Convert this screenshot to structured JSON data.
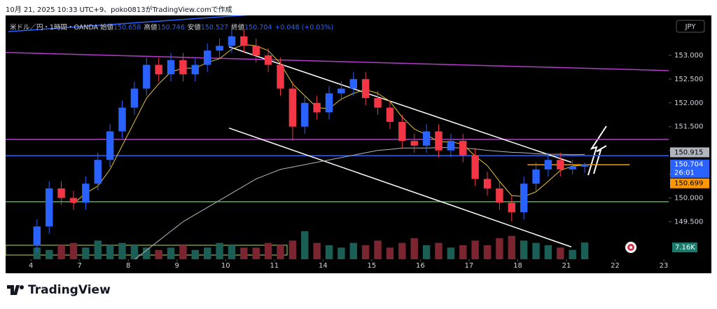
{
  "chart_data": {
    "type": "candlestick",
    "caption": "10月 21, 2025 10:33 UTC+9、poko0813がTradingView.comで作成",
    "legend": {
      "symbol": "米ドル／円・1時間・OANDA",
      "open_label": "始値",
      "open": 150.658,
      "high_label": "高値",
      "high": 150.746,
      "low_label": "安値",
      "low": 150.527,
      "close_label": "終値",
      "close": 150.704,
      "change": "+0.048 (+0.03%)"
    },
    "currency": "JPY",
    "brand": "TradingView",
    "xlim": [
      -0.52,
      13.1
    ],
    "xticks": [
      {
        "value": 0,
        "label": "4"
      },
      {
        "value": 1,
        "label": "7"
      },
      {
        "value": 2,
        "label": "8"
      },
      {
        "value": 3,
        "label": "9"
      },
      {
        "value": 4,
        "label": "10"
      },
      {
        "value": 5,
        "label": "11"
      },
      {
        "value": 6,
        "label": "14"
      },
      {
        "value": 7,
        "label": "15"
      },
      {
        "value": 8,
        "label": "16"
      },
      {
        "value": 9,
        "label": "17"
      },
      {
        "value": 10,
        "label": "18"
      },
      {
        "value": 11,
        "label": "21"
      },
      {
        "value": 12,
        "label": "22"
      },
      {
        "value": 13,
        "label": "23"
      }
    ],
    "ylim": [
      148.71,
      153.84
    ],
    "yticks": [
      {
        "value": 149.5,
        "label": "149.500"
      },
      {
        "value": 150,
        "label": "150.000"
      },
      {
        "value": 150.5,
        "label": "150.500"
      },
      {
        "value": 151,
        "label": "151.000"
      },
      {
        "value": 151.5,
        "label": "151.500"
      },
      {
        "value": 152,
        "label": "152.000"
      },
      {
        "value": 152.5,
        "label": "152.500"
      },
      {
        "value": 153,
        "label": "153.000"
      }
    ],
    "up_color": "#2962ff",
    "down_color": "#f23645",
    "x": [
      0.125,
      0.375,
      0.625,
      0.875,
      1.125,
      1.375,
      1.625,
      1.875,
      2.125,
      2.375,
      2.625,
      2.875,
      3.125,
      3.375,
      3.625,
      3.875,
      4.125,
      4.375,
      4.625,
      4.875,
      5.125,
      5.375,
      5.625,
      5.875,
      6.125,
      6.375,
      6.625,
      6.875,
      7.125,
      7.375,
      7.625,
      7.875,
      8.125,
      8.375,
      8.625,
      8.875,
      9.125,
      9.375,
      9.625,
      9.875,
      10.125,
      10.375,
      10.625,
      10.875,
      11.125,
      11.375
    ],
    "open": [
      149.0,
      149.4,
      150.2,
      150.0,
      149.9,
      150.3,
      150.8,
      151.4,
      151.9,
      152.3,
      152.8,
      152.6,
      152.9,
      152.6,
      152.8,
      153.1,
      153.2,
      153.4,
      153.2,
      153.0,
      152.8,
      152.3,
      151.5,
      152.0,
      151.8,
      152.2,
      152.3,
      152.5,
      152.1,
      151.9,
      151.6,
      151.2,
      151.1,
      151.4,
      151.0,
      151.2,
      150.9,
      150.4,
      150.2,
      149.9,
      149.7,
      150.3,
      150.6,
      150.8,
      150.6,
      150.658
    ],
    "high": [
      149.55,
      150.35,
      150.35,
      150.15,
      150.45,
      150.95,
      151.55,
      152.05,
      152.45,
      152.95,
      152.95,
      153.05,
      153.05,
      152.95,
      153.25,
      153.35,
      153.55,
      153.55,
      153.35,
      153.15,
      152.95,
      152.45,
      152.15,
      152.15,
      152.35,
      152.45,
      152.65,
      152.65,
      152.25,
      152.05,
      151.75,
      151.35,
      151.55,
      151.55,
      151.35,
      151.35,
      151.05,
      150.55,
      150.35,
      150.05,
      150.45,
      150.75,
      150.95,
      150.95,
      150.8,
      150.746
    ],
    "low": [
      148.85,
      149.25,
      149.85,
      149.75,
      149.75,
      150.15,
      150.65,
      151.25,
      151.75,
      152.15,
      152.45,
      152.45,
      152.45,
      152.45,
      152.65,
      152.95,
      153.05,
      153.05,
      152.85,
      152.65,
      152.15,
      151.2,
      151.35,
      151.65,
      151.65,
      152.05,
      152.15,
      151.95,
      151.75,
      151.45,
      151.05,
      150.95,
      150.95,
      150.85,
      150.85,
      150.75,
      150.25,
      150.05,
      149.75,
      149.5,
      149.55,
      150.15,
      150.45,
      150.45,
      150.5,
      150.527
    ],
    "close": [
      149.4,
      150.2,
      150.0,
      149.9,
      150.3,
      150.8,
      151.4,
      151.9,
      152.3,
      152.8,
      152.6,
      152.9,
      152.6,
      152.8,
      153.1,
      153.2,
      153.4,
      153.2,
      153.0,
      152.8,
      152.3,
      151.5,
      152.0,
      151.8,
      152.2,
      152.3,
      152.5,
      152.1,
      151.9,
      151.6,
      151.2,
      151.1,
      151.4,
      151.0,
      151.2,
      150.9,
      150.4,
      150.2,
      149.9,
      149.7,
      150.3,
      150.6,
      150.8,
      150.6,
      150.66,
      150.704
    ],
    "ma": [
      {
        "color": "#e8c12f",
        "values": [
          null,
          null,
          null,
          149.88,
          150.1,
          150.25,
          150.6,
          151.1,
          151.6,
          152.1,
          152.4,
          152.65,
          152.73,
          152.73,
          152.85,
          152.93,
          153.13,
          153.23,
          153.2,
          153.1,
          152.83,
          152.4,
          152.15,
          151.9,
          151.88,
          152.08,
          152.2,
          152.28,
          152.2,
          152.03,
          151.7,
          151.45,
          151.33,
          151.18,
          151.18,
          151.13,
          150.88,
          150.68,
          150.35,
          150.05,
          150.03,
          150.13,
          150.35,
          150.58,
          150.67,
          150.69
        ]
      },
      {
        "color": "#b2b5be",
        "values": [
          null,
          null,
          null,
          null,
          null,
          null,
          null,
          null,
          148.7,
          148.9,
          149.1,
          149.3,
          149.5,
          149.65,
          149.8,
          149.95,
          150.1,
          150.25,
          150.4,
          150.5,
          150.6,
          150.65,
          150.7,
          150.75,
          150.8,
          150.85,
          150.9,
          150.95,
          151.0,
          151.02,
          151.05,
          151.05,
          151.05,
          151.06,
          151.06,
          151.05,
          151.03,
          151.0,
          150.98,
          150.96,
          150.95,
          150.93,
          150.92,
          150.92,
          150.91,
          150.915
        ]
      }
    ],
    "drawings": [
      {
        "color": "#b03cc8",
        "x": [
          -0.52,
          13.1
        ],
        "values": [
          153.06,
          152.68
        ]
      },
      {
        "color": "#b03cc8",
        "x": [
          -0.52,
          13.1
        ],
        "values": [
          151.23,
          151.23
        ]
      },
      {
        "color": "#2962ff",
        "x": [
          -0.52,
          13.1
        ],
        "values": [
          150.89,
          150.89
        ]
      },
      {
        "color": "#4caf50",
        "x": [
          -0.52,
          13.1
        ],
        "values": [
          149.92,
          149.92
        ]
      },
      {
        "color": "#ff9800",
        "x": [
          10.2,
          12.3
        ],
        "values": [
          150.699,
          150.699
        ]
      },
      {
        "color": "#ffffff",
        "x": [
          4.07,
          11.1
        ],
        "values": [
          153.18,
          150.75
        ]
      },
      {
        "color": "#ffffff",
        "x": [
          4.07,
          11.1
        ],
        "values": [
          151.47,
          148.97
        ]
      },
      {
        "color": "#2962ff",
        "x": [
          -0.46,
          4.88
        ],
        "values": [
          153.5,
          153.88
        ]
      }
    ],
    "price_labels": {
      "ma_value": 150.915,
      "current": 150.704,
      "countdown": "26:01",
      "line_value": 150.699
    },
    "volume": {
      "ylim": [
        0,
        18
      ],
      "value_label": "7.16K",
      "values": [
        5,
        4,
        6,
        7,
        5,
        8,
        6,
        7,
        6,
        5,
        4,
        5,
        6,
        4,
        5,
        7,
        6,
        5,
        5,
        7,
        6,
        8,
        12,
        7,
        6,
        5,
        7,
        6,
        8,
        5,
        7,
        9,
        6,
        7,
        5,
        6,
        8,
        6,
        9,
        10,
        8,
        7,
        6,
        5,
        4,
        7.16
      ]
    }
  }
}
